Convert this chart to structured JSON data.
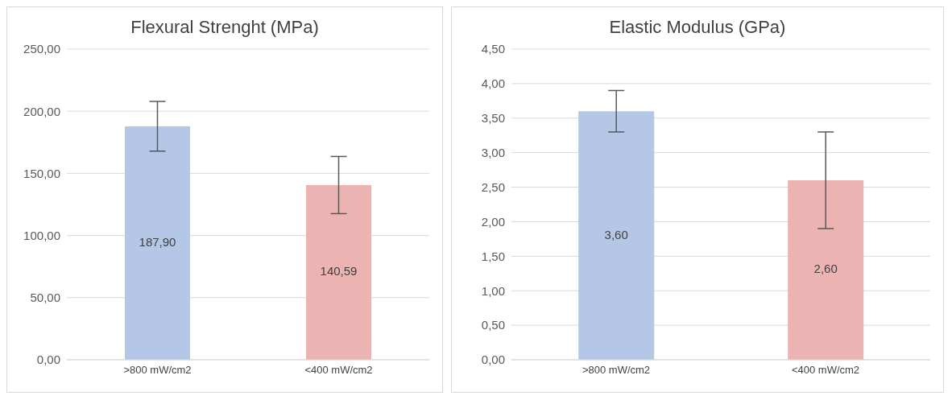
{
  "chart_data": [
    {
      "type": "bar",
      "title": "Flexural Strenght (MPa)",
      "categories": [
        ">800 mW/cm2",
        "<400 mW/cm2"
      ],
      "values": [
        187.9,
        140.59
      ],
      "colors": [
        "#b4c7e7",
        "#ecb3b3"
      ],
      "errors": [
        20,
        23
      ],
      "value_labels": [
        "187,90",
        "140,59"
      ],
      "ylim": [
        0,
        250
      ],
      "yticks": [
        {
          "value": 0,
          "label": "0,00"
        },
        {
          "value": 50,
          "label": "50,00"
        },
        {
          "value": 100,
          "label": "100,00"
        },
        {
          "value": 150,
          "label": "150,00"
        },
        {
          "value": 200,
          "label": "200,00"
        },
        {
          "value": 250,
          "label": "250,00"
        }
      ],
      "grid": "y"
    },
    {
      "type": "bar",
      "title": "Elastic Modulus (GPa)",
      "categories": [
        ">800 mW/cm2",
        "<400 mW/cm2"
      ],
      "values": [
        3.6,
        2.6
      ],
      "colors": [
        "#b4c7e7",
        "#ecb3b3"
      ],
      "errors": [
        0.3,
        0.7
      ],
      "value_labels": [
        "3,60",
        "2,60"
      ],
      "ylim": [
        0,
        4.5
      ],
      "yticks": [
        {
          "value": 0,
          "label": "0,00"
        },
        {
          "value": 0.5,
          "label": "0,50"
        },
        {
          "value": 1,
          "label": "1,00"
        },
        {
          "value": 1.5,
          "label": "1,50"
        },
        {
          "value": 2,
          "label": "2,00"
        },
        {
          "value": 2.5,
          "label": "2,50"
        },
        {
          "value": 3,
          "label": "3,00"
        },
        {
          "value": 3.5,
          "label": "3,50"
        },
        {
          "value": 4,
          "label": "4,00"
        },
        {
          "value": 4.5,
          "label": "4,50"
        }
      ],
      "grid": "y"
    }
  ]
}
